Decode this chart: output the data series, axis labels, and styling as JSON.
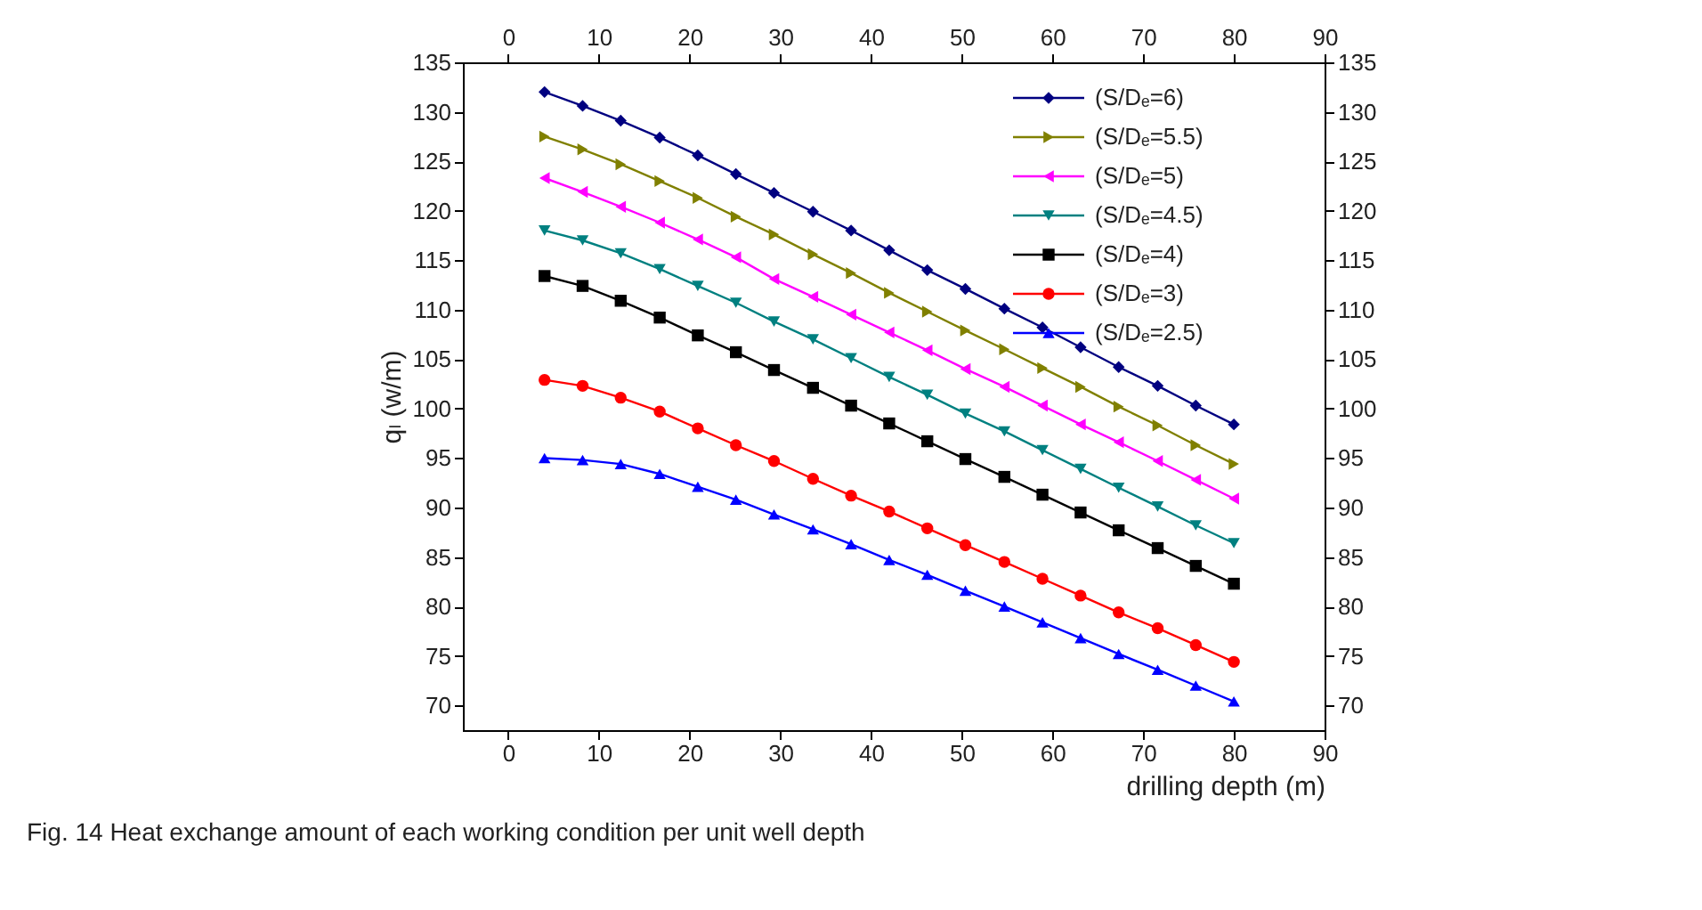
{
  "chart_data": {
    "type": "line",
    "xlabel": "drilling depth (m)",
    "ylabel": "qₗ (w/m)",
    "annotations": [
      "Fig. 14  Heat exchange amount of each working condition per unit well depth"
    ],
    "x": [
      4,
      8.2,
      12.4,
      16.7,
      20.9,
      25.1,
      29.3,
      33.6,
      37.8,
      42,
      46.2,
      50.4,
      54.7,
      58.9,
      63.1,
      67.3,
      71.6,
      75.8,
      80
    ],
    "series": [
      {
        "name": "(S/Dₑ=6)",
        "color": "#000080",
        "marker": "diamond",
        "values": [
          132,
          130.6,
          129.1,
          127.4,
          125.6,
          123.7,
          121.8,
          119.9,
          118,
          116,
          114,
          112.1,
          110.1,
          108.2,
          106.2,
          104.2,
          102.3,
          100.3,
          98.4
        ]
      },
      {
        "name": "(S/Dₑ=5.5)",
        "color": "#808000",
        "marker": "triangle-right",
        "values": [
          127.5,
          126.2,
          124.7,
          123,
          121.3,
          119.4,
          117.6,
          115.6,
          113.7,
          111.7,
          109.8,
          107.9,
          106,
          104.1,
          102.2,
          100.2,
          98.3,
          96.3,
          94.4
        ]
      },
      {
        "name": "(S/Dₑ=5)",
        "color": "#ff00ff",
        "marker": "triangle-left",
        "values": [
          123.3,
          121.9,
          120.4,
          118.8,
          117.1,
          115.3,
          113.1,
          111.3,
          109.5,
          107.7,
          105.9,
          104,
          102.2,
          100.3,
          98.4,
          96.6,
          94.7,
          92.8,
          90.9
        ]
      },
      {
        "name": "(S/Dₑ=4.5)",
        "color": "#008080",
        "marker": "triangle-down",
        "values": [
          118,
          117,
          115.7,
          114.1,
          112.4,
          110.7,
          108.8,
          107,
          105.1,
          103.2,
          101.4,
          99.5,
          97.7,
          95.8,
          93.9,
          92,
          90.1,
          88.2,
          86.4
        ]
      },
      {
        "name": "(S/Dₑ=4)",
        "color": "#000000",
        "marker": "square",
        "values": [
          113.4,
          112.4,
          110.9,
          109.2,
          107.4,
          105.7,
          103.9,
          102.1,
          100.3,
          98.5,
          96.7,
          94.9,
          93.1,
          91.3,
          89.5,
          87.7,
          85.9,
          84.1,
          82.3
        ]
      },
      {
        "name": "(S/Dₑ=3)",
        "color": "#ff0000",
        "marker": "circle",
        "values": [
          102.9,
          102.3,
          101.1,
          99.7,
          98,
          96.3,
          94.7,
          92.9,
          91.2,
          89.6,
          87.9,
          86.2,
          84.5,
          82.8,
          81.1,
          79.4,
          77.8,
          76.1,
          74.4
        ]
      },
      {
        "name": "(S/Dₑ=2.5)",
        "color": "#0000ff",
        "marker": "triangle-up",
        "values": [
          95,
          94.8,
          94.4,
          93.4,
          92.1,
          90.8,
          89.3,
          87.8,
          86.3,
          84.7,
          83.2,
          81.6,
          80,
          78.4,
          76.8,
          75.2,
          73.6,
          72,
          70.4
        ]
      }
    ],
    "xlim": [
      -5,
      90
    ],
    "xticks": [
      0,
      10,
      20,
      30,
      40,
      50,
      60,
      70,
      80,
      90
    ],
    "x2lim": [
      -5,
      90
    ],
    "x2ticks": [
      0,
      10,
      20,
      30,
      40,
      50,
      60,
      70,
      80,
      90
    ],
    "ylim": [
      67.5,
      135
    ],
    "yticks": [
      70,
      75,
      80,
      85,
      90,
      95,
      100,
      105,
      110,
      115,
      120,
      125,
      130,
      135
    ],
    "y2lim": [
      67.5,
      135
    ],
    "y2ticks": [
      70,
      75,
      80,
      85,
      90,
      95,
      100,
      105,
      110,
      115,
      120,
      125,
      130,
      135
    ],
    "legend": "top right",
    "grid": false,
    "line_style": "solid"
  }
}
